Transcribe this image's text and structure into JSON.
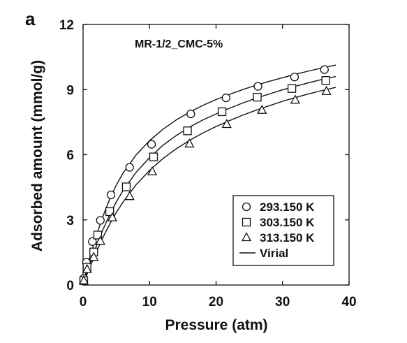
{
  "chart_data": {
    "type": "scatter",
    "panel_label": "a",
    "annotation": "MR-1/2_CMC-5%",
    "xlabel": "Pressure (atm)",
    "ylabel": "Adsorbed amount (mmol/g)",
    "xlim": [
      0,
      40
    ],
    "ylim": [
      0,
      12
    ],
    "xticks": [
      0,
      10,
      20,
      30,
      40
    ],
    "yticks": [
      0,
      3,
      6,
      9,
      12
    ],
    "grid": false,
    "legend_position": "bottom-right",
    "line_legend_label": "Virial",
    "series": [
      {
        "name": "293.150 K",
        "marker": "circle",
        "x": [
          0.1,
          0.5,
          1.4,
          2.6,
          4.2,
          7.0,
          10.3,
          16.2,
          21.5,
          26.3,
          31.8,
          36.3
        ],
        "y": [
          0.3,
          1.05,
          2.0,
          2.98,
          4.15,
          5.42,
          6.48,
          7.88,
          8.62,
          9.15,
          9.58,
          9.92
        ]
      },
      {
        "name": "303.150 K",
        "marker": "square",
        "x": [
          0.1,
          0.6,
          1.6,
          2.2,
          4.0,
          6.5,
          10.6,
          15.7,
          20.9,
          26.2,
          31.4,
          36.5
        ],
        "y": [
          0.2,
          0.82,
          1.52,
          2.3,
          3.38,
          4.52,
          5.9,
          7.1,
          7.98,
          8.65,
          9.05,
          9.42
        ]
      },
      {
        "name": "313.150 K",
        "marker": "triangle",
        "x": [
          0.1,
          0.6,
          1.6,
          2.6,
          4.4,
          7.0,
          10.4,
          16.0,
          21.6,
          26.9,
          31.9,
          36.6
        ],
        "y": [
          0.2,
          0.72,
          1.28,
          2.02,
          3.1,
          4.08,
          5.22,
          6.5,
          7.4,
          8.05,
          8.52,
          8.92
        ]
      }
    ],
    "fit_curves": [
      {
        "x": [
          0.1,
          1,
          2,
          3,
          4,
          5,
          6,
          8,
          10,
          12,
          14,
          16,
          18,
          20,
          22,
          24,
          26,
          28,
          30,
          32,
          34,
          36,
          38
        ],
        "y": [
          0.2,
          1.25,
          2.28,
          3.18,
          3.95,
          4.6,
          5.15,
          6.0,
          6.65,
          7.17,
          7.6,
          7.96,
          8.27,
          8.54,
          8.78,
          9.0,
          9.2,
          9.38,
          9.55,
          9.71,
          9.86,
          10.0,
          10.13
        ]
      },
      {
        "x": [
          0.1,
          1,
          2,
          3,
          4,
          5,
          6,
          8,
          10,
          12,
          14,
          16,
          18,
          20,
          22,
          24,
          26,
          28,
          30,
          32,
          34,
          36,
          38
        ],
        "y": [
          0.15,
          0.95,
          1.8,
          2.56,
          3.24,
          3.83,
          4.35,
          5.2,
          5.87,
          6.43,
          6.88,
          7.27,
          7.6,
          7.88,
          8.14,
          8.38,
          8.6,
          8.8,
          8.99,
          9.16,
          9.32,
          9.47,
          9.6
        ]
      },
      {
        "x": [
          0.1,
          1,
          2,
          3,
          4,
          5,
          6,
          8,
          10,
          12,
          14,
          16,
          18,
          20,
          22,
          24,
          26,
          28,
          30,
          32,
          34,
          36,
          38
        ],
        "y": [
          0.12,
          0.8,
          1.53,
          2.2,
          2.8,
          3.34,
          3.82,
          4.63,
          5.28,
          5.82,
          6.27,
          6.66,
          7.0,
          7.3,
          7.57,
          7.82,
          8.05,
          8.26,
          8.46,
          8.64,
          8.81,
          8.96,
          9.1
        ]
      }
    ]
  }
}
